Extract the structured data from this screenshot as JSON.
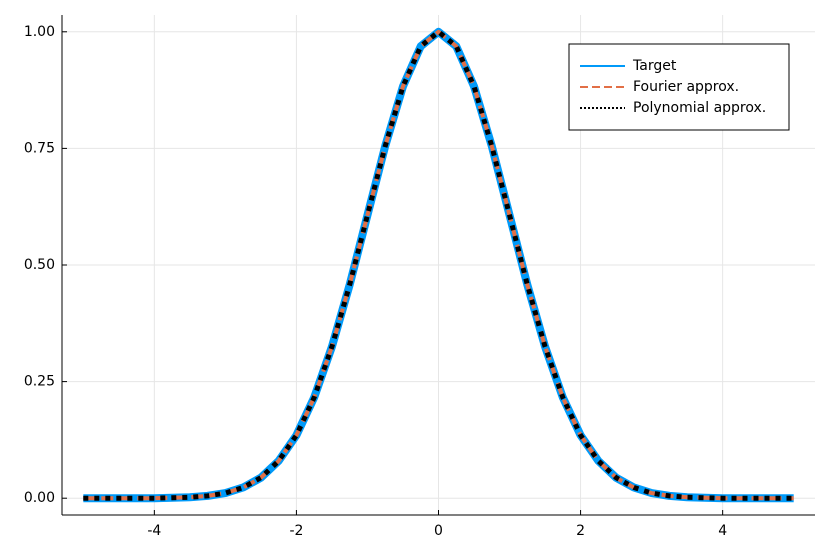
{
  "chart_data": {
    "type": "line",
    "x": [
      -5,
      -4.75,
      -4.5,
      -4.25,
      -4,
      -3.75,
      -3.5,
      -3.25,
      -3,
      -2.75,
      -2.5,
      -2.25,
      -2,
      -1.75,
      -1.5,
      -1.25,
      -1,
      -0.75,
      -0.5,
      -0.25,
      0,
      0.25,
      0.5,
      0.75,
      1,
      1.25,
      1.5,
      1.75,
      2,
      2.25,
      2.5,
      2.75,
      3,
      3.25,
      3.5,
      3.75,
      4,
      4.25,
      4.5,
      4.75,
      5
    ],
    "series": [
      {
        "name": "Target",
        "color": "#009af9",
        "style": "solid",
        "values": [
          0,
          0,
          0,
          0,
          0,
          0.001,
          0.002,
          0.005,
          0.011,
          0.023,
          0.044,
          0.08,
          0.135,
          0.216,
          0.325,
          0.458,
          0.607,
          0.755,
          0.883,
          0.969,
          1,
          0.969,
          0.883,
          0.755,
          0.607,
          0.458,
          0.325,
          0.216,
          0.135,
          0.08,
          0.044,
          0.023,
          0.011,
          0.005,
          0.002,
          0.001,
          0,
          0,
          0,
          0,
          0
        ]
      },
      {
        "name": "Fourier approx.",
        "color": "#e26f46",
        "style": "dashed",
        "values": [
          0,
          0,
          0,
          0,
          0,
          0.001,
          0.002,
          0.005,
          0.011,
          0.023,
          0.044,
          0.08,
          0.135,
          0.216,
          0.325,
          0.458,
          0.607,
          0.755,
          0.883,
          0.969,
          1,
          0.969,
          0.883,
          0.755,
          0.607,
          0.458,
          0.325,
          0.216,
          0.135,
          0.08,
          0.044,
          0.023,
          0.011,
          0.005,
          0.002,
          0.001,
          0,
          0,
          0,
          0,
          0
        ]
      },
      {
        "name": "Polynomial approx.",
        "color": "#000000",
        "style": "dotted",
        "values": [
          0,
          0,
          0,
          0,
          0,
          0.001,
          0.002,
          0.005,
          0.011,
          0.023,
          0.044,
          0.08,
          0.135,
          0.216,
          0.325,
          0.458,
          0.607,
          0.755,
          0.883,
          0.969,
          1,
          0.969,
          0.883,
          0.755,
          0.607,
          0.458,
          0.325,
          0.216,
          0.135,
          0.08,
          0.044,
          0.023,
          0.011,
          0.005,
          0.002,
          0.001,
          0,
          0,
          0,
          0,
          0
        ]
      }
    ],
    "xlim": [
      -5.3,
      5.3
    ],
    "ylim": [
      -0.036,
      1.036
    ],
    "xticks": [
      -4,
      -2,
      0,
      2,
      4
    ],
    "yticks": [
      {
        "value": 0,
        "label": "0.00"
      },
      {
        "value": 0.25,
        "label": "0.25"
      },
      {
        "value": 0.5,
        "label": "0.50"
      },
      {
        "value": 0.75,
        "label": "0.75"
      },
      {
        "value": 1,
        "label": "1.00"
      }
    ],
    "grid": true,
    "legend": "top-right"
  }
}
